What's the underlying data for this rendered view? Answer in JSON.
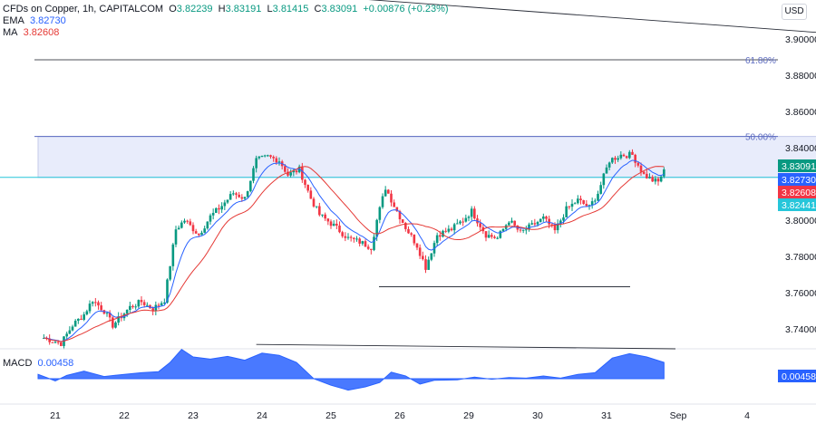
{
  "header": {
    "symbol": "CFDs on Copper, 1h, CAPITALCOM",
    "o_label": "O",
    "o_value": "3.82239",
    "h_label": "H",
    "h_value": "3.83191",
    "l_label": "L",
    "l_value": "3.81415",
    "c_label": "C",
    "c_value": "3.83091",
    "change": "+0.00876 (+0.23%)",
    "ema_label": "EMA",
    "ema_value": "3.82730",
    "ma_label": "MA",
    "ma_value": "3.82608",
    "macd_label": "MACD",
    "macd_value": "0.00458"
  },
  "currency_button": "USD",
  "colors": {
    "up": "#089981",
    "down": "#f23645",
    "ema": "#2962ff",
    "ma": "#e53935",
    "zone_fill": "#e8ecfb",
    "fib_line": "#5c6bc0",
    "support_line": "#26c6da",
    "macd_fill": "#2962ff",
    "badge_close": "#089981",
    "badge_ema": "#2962ff",
    "badge_ma": "#f23645",
    "badge_prev": "#26c6da"
  },
  "chart_data": {
    "type": "candlestick",
    "title": "CFDs on Copper, 1h, CAPITALCOM",
    "y_range": [
      3.725,
      3.905
    ],
    "y_ticks": [
      "3.90000",
      "3.88000",
      "3.86000",
      "3.84000",
      "3.82000",
      "3.80000",
      "3.78000",
      "3.76000",
      "3.74000"
    ],
    "y_tick_values": [
      3.9,
      3.88,
      3.86,
      3.84,
      3.82,
      3.8,
      3.78,
      3.76,
      3.74
    ],
    "x_ticks": [
      "21",
      "22",
      "23",
      "24",
      "25",
      "26",
      "29",
      "30",
      "31",
      "Sep",
      "4"
    ],
    "x_range": [
      "Aug 20 18:00",
      "Sep 4 12:00"
    ],
    "price_anchors": [
      [
        "Aug 20 20:00",
        3.735
      ],
      [
        "Aug 21 02:00",
        3.732
      ],
      [
        "Aug 21 06:00",
        3.742
      ],
      [
        "Aug 21 10:00",
        3.748
      ],
      [
        "Aug 21 13:00",
        3.756
      ],
      [
        "Aug 21 17:00",
        3.75
      ],
      [
        "Aug 21 20:00",
        3.742
      ],
      [
        "Aug 22 02:00",
        3.752
      ],
      [
        "Aug 22 06:00",
        3.755
      ],
      [
        "Aug 22 10:00",
        3.751
      ],
      [
        "Aug 22 14:00",
        3.756
      ],
      [
        "Aug 22 18:00",
        3.795
      ],
      [
        "Aug 22 21:00",
        3.8
      ],
      [
        "Aug 23 02:00",
        3.792
      ],
      [
        "Aug 23 06:00",
        3.802
      ],
      [
        "Aug 23 10:00",
        3.808
      ],
      [
        "Aug 23 14:00",
        3.815
      ],
      [
        "Aug 23 18:00",
        3.812
      ],
      [
        "Aug 23 22:00",
        3.833
      ],
      [
        "Aug 24 02:00",
        3.835
      ],
      [
        "Aug 24 06:00",
        3.833
      ],
      [
        "Aug 24 09:00",
        3.825
      ],
      [
        "Aug 24 13:00",
        3.828
      ],
      [
        "Aug 24 17:00",
        3.812
      ],
      [
        "Aug 24 20:00",
        3.803
      ],
      [
        "Aug 25 01:00",
        3.797
      ],
      [
        "Aug 25 06:00",
        3.79
      ],
      [
        "Aug 25 10:00",
        3.788
      ],
      [
        "Aug 25 14:00",
        3.785
      ],
      [
        "Aug 25 16:00",
        3.8
      ],
      [
        "Aug 25 19:00",
        3.818
      ],
      [
        "Aug 25 22:00",
        3.808
      ],
      [
        "Aug 26 02:00",
        3.796
      ],
      [
        "Aug 26 06:00",
        3.786
      ],
      [
        "Aug 26 09:00",
        3.774
      ],
      [
        "Aug 26 13:00",
        3.792
      ],
      [
        "Aug 26 18:00",
        3.795
      ],
      [
        "Aug 26 22:00",
        3.8
      ],
      [
        "Aug 28 01:00",
        3.805
      ],
      [
        "Aug 28 06:00",
        3.792
      ],
      [
        "Aug 28 10:00",
        3.79
      ],
      [
        "Aug 28 14:00",
        3.8
      ],
      [
        "Aug 28 18:00",
        3.793
      ],
      [
        "Aug 28 22:00",
        3.797
      ],
      [
        "Aug 29 02:00",
        3.801
      ],
      [
        "Aug 29 06:00",
        3.794
      ],
      [
        "Aug 29 10:00",
        3.806
      ],
      [
        "Aug 29 14:00",
        3.811
      ],
      [
        "Aug 29 18:00",
        3.807
      ],
      [
        "Aug 29 21:00",
        3.815
      ],
      [
        "Aug 30 01:00",
        3.833
      ],
      [
        "Aug 30 05:00",
        3.836
      ],
      [
        "Aug 30 09:00",
        3.836
      ],
      [
        "Aug 30 13:00",
        3.825
      ],
      [
        "Aug 30 16:00",
        3.822
      ],
      [
        "Aug 30 18:00",
        3.821
      ],
      [
        "Aug 30 20:00",
        3.828
      ]
    ],
    "series": [
      {
        "name": "EMA",
        "value": 3.8273
      },
      {
        "name": "MA",
        "value": 3.82608
      }
    ],
    "horizontal_levels": [
      {
        "label": "61.80%",
        "value": 3.8885
      },
      {
        "label": "50.00%",
        "value": 3.8462
      },
      {
        "value": 3.8236
      },
      {
        "value": 3.7633
      }
    ],
    "trendlines": [
      {
        "from": [
          "Aug 22 18:00",
          3.9295
        ],
        "to": [
          "Sep 4 12:00",
          3.8968
        ]
      },
      {
        "pane": "macd",
        "from": [
          "Aug 23 22:00",
          0.0063
        ],
        "to": [
          "Aug 31 00:00",
          0.0055
        ]
      }
    ],
    "zone": {
      "top": 3.8462,
      "bottom": 3.8236,
      "from": "Aug 20 18:00",
      "to": "Sep 3 06:00"
    },
    "price_badges": [
      {
        "value": "3.83091"
      },
      {
        "value": "3.82730"
      },
      {
        "value": "3.82608"
      },
      {
        "value": "3.82441"
      }
    ],
    "macd": {
      "range": [
        -0.003,
        0.0065
      ],
      "ticks": [
        "0.00000"
      ],
      "tick_values": [
        0.0
      ],
      "badge": "0.00458",
      "anchors": [
        [
          "Aug 20 18:00",
          0.0008
        ],
        [
          "Aug 21 00:00",
          -0.0004
        ],
        [
          "Aug 21 04:00",
          0.0006
        ],
        [
          "Aug 21 10:00",
          0.0014
        ],
        [
          "Aug 21 17:00",
          0.0004
        ],
        [
          "Aug 22 00:00",
          0.0008
        ],
        [
          "Aug 22 06:00",
          0.0011
        ],
        [
          "Aug 22 12:00",
          0.0013
        ],
        [
          "Aug 22 16:00",
          0.003
        ],
        [
          "Aug 22 20:00",
          0.0054
        ],
        [
          "Aug 23 00:00",
          0.004
        ],
        [
          "Aug 23 06:00",
          0.0036
        ],
        [
          "Aug 23 12:00",
          0.0041
        ],
        [
          "Aug 23 18:00",
          0.0034
        ],
        [
          "Aug 24 00:00",
          0.0047
        ],
        [
          "Aug 24 06:00",
          0.0043
        ],
        [
          "Aug 24 12:00",
          0.003
        ],
        [
          "Aug 24 18:00",
          0.0
        ],
        [
          "Aug 25 00:00",
          -0.0012
        ],
        [
          "Aug 25 06:00",
          -0.0021
        ],
        [
          "Aug 25 12:00",
          -0.0015
        ],
        [
          "Aug 25 17:00",
          -0.0007
        ],
        [
          "Aug 25 21:00",
          0.0012
        ],
        [
          "Aug 26 02:00",
          0.0005
        ],
        [
          "Aug 26 07:00",
          -0.001
        ],
        [
          "Aug 26 12:00",
          -0.0003
        ],
        [
          "Aug 26 20:00",
          -0.0002
        ],
        [
          "Aug 28 02:00",
          0.0003
        ],
        [
          "Aug 28 08:00",
          -0.0001
        ],
        [
          "Aug 28 14:00",
          0.0002
        ],
        [
          "Aug 28 20:00",
          0.0001
        ],
        [
          "Aug 29 02:00",
          0.0005
        ],
        [
          "Aug 29 08:00",
          0.0001
        ],
        [
          "Aug 29 14:00",
          0.0008
        ],
        [
          "Aug 29 20:00",
          0.0011
        ],
        [
          "Aug 30 02:00",
          0.0038
        ],
        [
          "Aug 30 08:00",
          0.0046
        ],
        [
          "Aug 30 14:00",
          0.004
        ],
        [
          "Aug 30 20:00",
          0.003
        ]
      ]
    }
  }
}
